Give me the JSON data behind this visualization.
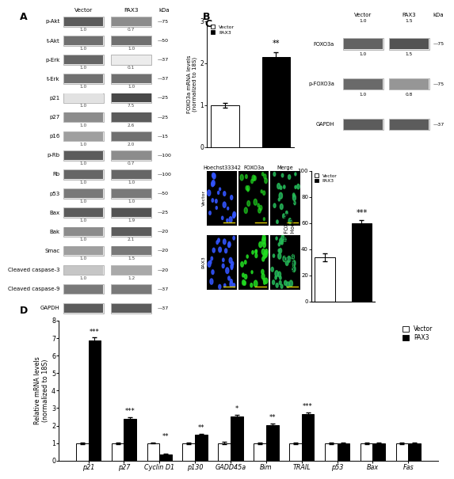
{
  "panel_A": {
    "label": "A",
    "proteins": [
      "p-Akt",
      "t-Akt",
      "p-Erk",
      "t-Erk",
      "p21",
      "p27",
      "p16",
      "p-Rb",
      "Rb",
      "p53",
      "Bax",
      "Bak",
      "Smac",
      "Cleaved caspase-3",
      "Cleaved caspase-9",
      "GAPDH"
    ],
    "vector_vals": [
      "1.0",
      "1.0",
      "1.0",
      "1.0",
      "1.0",
      "1.0",
      "1.0",
      "1.0",
      "1.0",
      "1.0",
      "1.0",
      "1.0",
      "1.0",
      "1.0",
      "",
      ""
    ],
    "pax3_vals": [
      "0.7",
      "1.0",
      "0.1",
      "1.0",
      "7.5",
      "2.6",
      "2.0",
      "0.7",
      "1.0",
      "1.0",
      "1.9",
      "2.1",
      "1.5",
      "1.2",
      "",
      ""
    ],
    "kda": [
      "75",
      "50",
      "37",
      "37",
      "25",
      "25",
      "15",
      "100",
      "100",
      "50",
      "25",
      "20",
      "20",
      "20",
      "37",
      "37"
    ],
    "band_intensities_v": [
      0.85,
      0.75,
      0.8,
      0.75,
      0.15,
      0.6,
      0.5,
      0.85,
      0.8,
      0.7,
      0.85,
      0.6,
      0.5,
      0.3,
      0.7,
      0.85
    ],
    "band_intensities_p": [
      0.6,
      0.75,
      0.1,
      0.75,
      0.95,
      0.85,
      0.75,
      0.6,
      0.8,
      0.7,
      0.9,
      0.85,
      0.7,
      0.45,
      0.7,
      0.85
    ]
  },
  "panel_B_bar": {
    "label": "B",
    "values": [
      1.0,
      2.15
    ],
    "errors": [
      0.06,
      0.12
    ],
    "colors": [
      "white",
      "black"
    ],
    "ylabel": "FOXO3a mRNA levels\n(normalized to 18S)",
    "ylim": [
      0,
      3
    ],
    "yticks": [
      0,
      1,
      2,
      3
    ],
    "significance": "**"
  },
  "panel_B_wb": {
    "proteins": [
      "FOXO3a",
      "p-FOXO3a",
      "GAPDH"
    ],
    "vector_vals": [
      "1.0",
      "1.0",
      ""
    ],
    "pax3_vals": [
      "1.5",
      "0.8",
      ""
    ],
    "kda": [
      "75",
      "75",
      "37"
    ],
    "band_v": [
      0.82,
      0.78,
      0.85
    ],
    "band_p": [
      0.9,
      0.55,
      0.85
    ]
  },
  "panel_C_bar": {
    "values": [
      34,
      60
    ],
    "errors": [
      3,
      2.5
    ],
    "colors": [
      "white",
      "black"
    ],
    "ylabel": "Cells with FOXO3a\nlocalization of Hoechst (%)",
    "ylim": [
      0,
      100
    ],
    "yticks": [
      0,
      20,
      40,
      60,
      80,
      100
    ],
    "significance": "***"
  },
  "panel_D": {
    "label": "D",
    "categories": [
      "p21",
      "p27",
      "Cyclin D1",
      "p130",
      "GADD45a",
      "Bim",
      "TRAIL",
      "p53",
      "Bax",
      "Fas"
    ],
    "vector_values": [
      1.0,
      1.0,
      1.0,
      1.0,
      1.0,
      1.0,
      1.0,
      1.0,
      1.0,
      1.0
    ],
    "pax3_values": [
      6.85,
      2.38,
      0.35,
      1.48,
      2.52,
      2.02,
      2.65,
      1.0,
      1.0,
      1.0
    ],
    "vector_errors": [
      0.04,
      0.04,
      0.03,
      0.04,
      0.06,
      0.04,
      0.04,
      0.04,
      0.04,
      0.04
    ],
    "pax3_errors": [
      0.18,
      0.1,
      0.04,
      0.07,
      0.1,
      0.1,
      0.1,
      0.04,
      0.04,
      0.04
    ],
    "significance": [
      "***",
      "***",
      "**",
      "**",
      "*",
      "**",
      "***",
      "",
      "",
      ""
    ],
    "ylabel": "Relative mRNA levels\n(normalized to 18S)",
    "ylim": [
      0,
      8
    ],
    "yticks": [
      0,
      1,
      2,
      3,
      4,
      5,
      6,
      7,
      8
    ]
  }
}
